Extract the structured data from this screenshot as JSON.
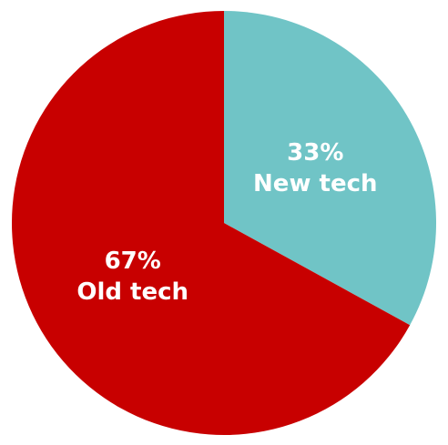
{
  "chart_data": {
    "type": "pie",
    "categories": [
      "New tech",
      "Old tech"
    ],
    "values": [
      33,
      67
    ],
    "value_labels": [
      "33%",
      "67%"
    ],
    "colors": [
      "#70c4c6",
      "#c80000"
    ]
  }
}
